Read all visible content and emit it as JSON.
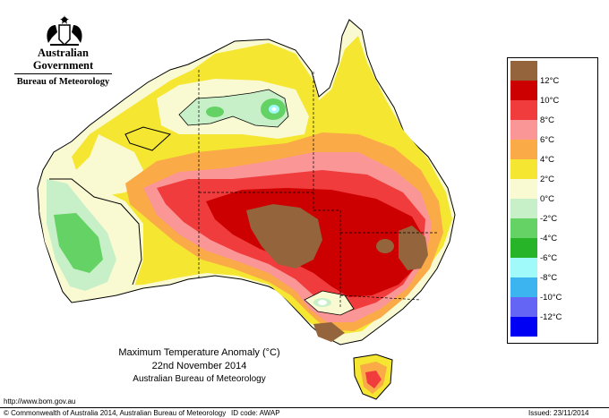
{
  "header": {
    "government": "Australian Government",
    "bureau": "Bureau of Meteorology"
  },
  "map": {
    "title": "Maximum Temperature Anomaly (°C)",
    "date": "22nd November 2014",
    "source": "Australian Bureau of Meteorology"
  },
  "legend": {
    "items": [
      {
        "label": "12°C",
        "color": "#94643c"
      },
      {
        "label": "10°C",
        "color": "#cc0000"
      },
      {
        "label": "8°C",
        "color": "#f03c3c"
      },
      {
        "label": "6°C",
        "color": "#fa9696"
      },
      {
        "label": "4°C",
        "color": "#faaa46"
      },
      {
        "label": "2°C",
        "color": "#f5e632"
      },
      {
        "label": "0°C",
        "color": "#fafad2"
      },
      {
        "label": "-2°C",
        "color": "#c8f0c8"
      },
      {
        "label": "-4°C",
        "color": "#64d264"
      },
      {
        "label": "-6°C",
        "color": "#28b428"
      },
      {
        "label": "-8°C",
        "color": "#a0fafa"
      },
      {
        "label": "-10°C",
        "color": "#3cb4f0"
      },
      {
        "label": "-12°C",
        "color": "#6464f5"
      },
      {
        "label": "",
        "color": "#0000f5"
      }
    ]
  },
  "footer": {
    "url": "http://www.bom.gov.au",
    "copyright": "© Commonwealth of Australia 2014, Australian Bureau of Meteorology",
    "id_code": "ID code: AWAP",
    "issued": "Issued: 23/11/2014"
  }
}
